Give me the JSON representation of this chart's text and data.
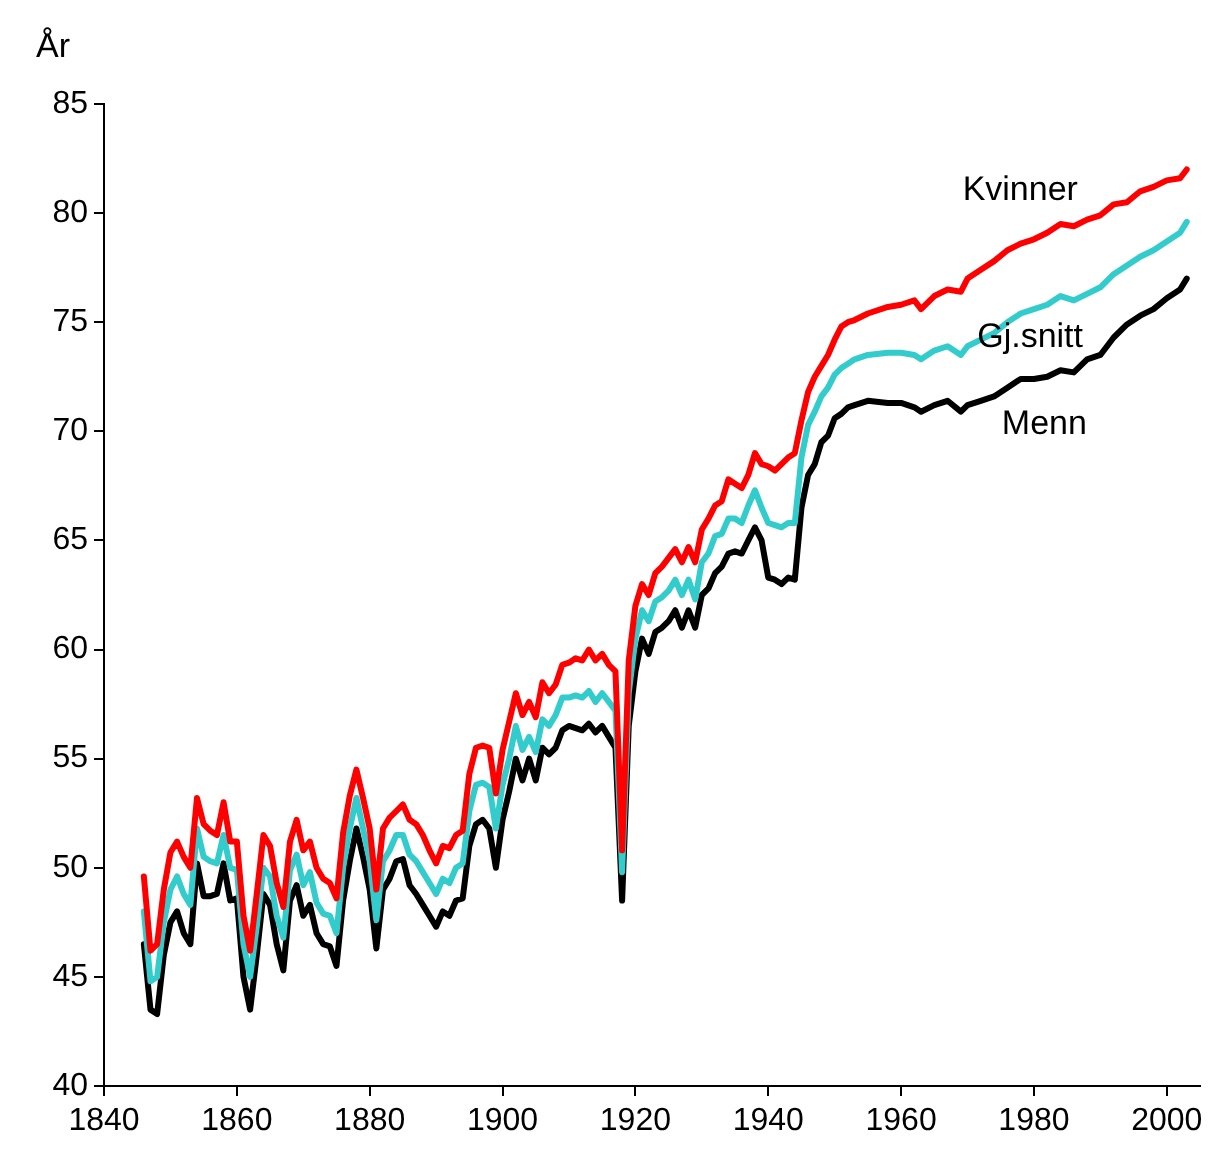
{
  "chart_data": {
    "type": "line",
    "ylabel": "År",
    "xlim": [
      1840,
      2005
    ],
    "xticks": [
      1840,
      1860,
      1880,
      1900,
      1920,
      1940,
      1960,
      1980,
      2000
    ],
    "ylim": [
      40,
      85
    ],
    "yticks": [
      40,
      45,
      50,
      55,
      60,
      65,
      70,
      75,
      80,
      85
    ],
    "grid": false,
    "legend": false,
    "marker": "none",
    "line_style": "solid",
    "x": [
      1846,
      1847,
      1848,
      1849,
      1850,
      1851,
      1852,
      1853,
      1854,
      1855,
      1856,
      1857,
      1858,
      1859,
      1860,
      1861,
      1862,
      1863,
      1864,
      1865,
      1866,
      1867,
      1868,
      1869,
      1870,
      1871,
      1872,
      1873,
      1874,
      1875,
      1876,
      1877,
      1878,
      1879,
      1880,
      1881,
      1882,
      1883,
      1884,
      1885,
      1886,
      1887,
      1888,
      1889,
      1890,
      1891,
      1892,
      1893,
      1894,
      1895,
      1896,
      1897,
      1898,
      1899,
      1900,
      1901,
      1902,
      1903,
      1904,
      1905,
      1906,
      1907,
      1908,
      1909,
      1910,
      1911,
      1912,
      1913,
      1914,
      1915,
      1916,
      1917,
      1918,
      1919,
      1920,
      1921,
      1922,
      1923,
      1924,
      1925,
      1926,
      1927,
      1928,
      1929,
      1930,
      1931,
      1932,
      1933,
      1934,
      1935,
      1936,
      1937,
      1938,
      1939,
      1940,
      1941,
      1942,
      1943,
      1944,
      1945,
      1946,
      1947,
      1948,
      1949,
      1950,
      1951,
      1952,
      1953,
      1955,
      1958,
      1960,
      1962,
      1963,
      1965,
      1967,
      1969,
      1970,
      1972,
      1974,
      1976,
      1978,
      1980,
      1982,
      1984,
      1986,
      1988,
      1990,
      1992,
      1994,
      1996,
      1998,
      2000,
      2002,
      2003
    ],
    "series": [
      {
        "name": "Kvinner",
        "color": "#ff0000",
        "values": [
          49.6,
          46.2,
          46.5,
          49,
          50.7,
          51.2,
          50.5,
          50,
          53.2,
          52,
          51.7,
          51.5,
          53,
          51.2,
          51.2,
          47.8,
          46.2,
          48.8,
          51.5,
          51,
          49.3,
          48.2,
          51.2,
          52.2,
          50.8,
          51.2,
          50,
          49.5,
          49.3,
          48.6,
          51.6,
          53.3,
          54.5,
          53.2,
          51.8,
          49,
          51.8,
          52.3,
          52.6,
          52.9,
          52.2,
          52,
          51.5,
          50.8,
          50.2,
          51,
          50.9,
          51.5,
          51.7,
          54.3,
          55.5,
          55.6,
          55.5,
          53.4,
          55.4,
          56.7,
          58,
          57,
          57.6,
          56.9,
          58.5,
          58,
          58.4,
          59.3,
          59.4,
          59.6,
          59.5,
          60,
          59.5,
          59.8,
          59.3,
          59,
          50.8,
          59.5,
          62,
          63,
          62.5,
          63.5,
          63.8,
          64.2,
          64.6,
          64,
          64.7,
          64,
          65.5,
          66,
          66.6,
          66.8,
          67.8,
          67.6,
          67.4,
          68,
          69,
          68.5,
          68.4,
          68.2,
          68.5,
          68.8,
          69,
          70.5,
          71.8,
          72.5,
          73,
          73.5,
          74.2,
          74.8,
          75,
          75.1,
          75.4,
          75.7,
          75.8,
          76,
          75.6,
          76.2,
          76.5,
          76.4,
          77,
          77.4,
          77.8,
          78.3,
          78.6,
          78.8,
          79.1,
          79.5,
          79.4,
          79.7,
          79.9,
          80.4,
          80.5,
          81,
          81.2,
          81.5,
          81.6,
          82
        ]
      },
      {
        "name": "Gj.snitt",
        "color": "#33cccc",
        "values": [
          48,
          44.8,
          45,
          47.5,
          49,
          49.6,
          48.8,
          48.3,
          51.8,
          50.5,
          50.3,
          50.2,
          51.5,
          50,
          49.9,
          46.5,
          45,
          47.3,
          50,
          49.6,
          47.8,
          46.8,
          49.9,
          50.6,
          49.2,
          49.8,
          48.4,
          47.9,
          47.8,
          47,
          50,
          51.8,
          53.2,
          51.8,
          50.3,
          47.6,
          50.3,
          50.8,
          51.5,
          51.5,
          50.6,
          50.3,
          49.8,
          49.3,
          48.8,
          49.5,
          49.3,
          50,
          50.2,
          52.6,
          53.8,
          53.9,
          53.7,
          51.8,
          53.8,
          55,
          56.5,
          55.4,
          56,
          55.3,
          56.8,
          56.5,
          57,
          57.8,
          57.8,
          57.9,
          57.8,
          58.1,
          57.6,
          58,
          57.6,
          57.2,
          49.8,
          58,
          60.5,
          61.8,
          61.3,
          62.2,
          62.4,
          62.7,
          63.2,
          62.5,
          63.2,
          62.3,
          64,
          64.4,
          65.2,
          65.3,
          66,
          66,
          65.8,
          66.6,
          67.3,
          66.5,
          65.8,
          65.7,
          65.6,
          65.8,
          65.8,
          68.8,
          70.3,
          70.9,
          71.6,
          72,
          72.6,
          72.9,
          73.1,
          73.3,
          73.5,
          73.6,
          73.6,
          73.5,
          73.3,
          73.7,
          73.9,
          73.5,
          73.9,
          74.2,
          74.5,
          75,
          75.4,
          75.6,
          75.8,
          76.2,
          76,
          76.3,
          76.6,
          77.2,
          77.6,
          78,
          78.3,
          78.7,
          79.1,
          79.6
        ]
      },
      {
        "name": "Menn",
        "color": "#000000",
        "values": [
          46.5,
          43.5,
          43.3,
          46,
          47.5,
          48,
          47,
          46.5,
          50.2,
          48.7,
          48.7,
          48.8,
          50.2,
          48.5,
          48.6,
          45,
          43.5,
          46,
          48.8,
          48.3,
          46.5,
          45.3,
          48.5,
          49.2,
          47.8,
          48.3,
          47,
          46.5,
          46.4,
          45.5,
          48.5,
          50.3,
          51.8,
          50.5,
          49,
          46.3,
          49,
          49.5,
          50.3,
          50.4,
          49.2,
          48.8,
          48.3,
          47.8,
          47.3,
          48,
          47.8,
          48.5,
          48.6,
          51,
          52,
          52.2,
          51.8,
          50,
          52.2,
          53.5,
          55,
          54,
          55,
          54,
          55.5,
          55.2,
          55.5,
          56.3,
          56.5,
          56.4,
          56.3,
          56.6,
          56.2,
          56.5,
          56,
          55.5,
          48.5,
          56.5,
          59,
          60.5,
          59.8,
          60.8,
          61,
          61.3,
          61.8,
          61,
          61.8,
          61,
          62.5,
          62.8,
          63.5,
          63.8,
          64.4,
          64.5,
          64.4,
          65,
          65.6,
          65,
          63.3,
          63.2,
          63,
          63.3,
          63.2,
          66.5,
          68,
          68.5,
          69.5,
          69.8,
          70.6,
          70.8,
          71.1,
          71.2,
          71.4,
          71.3,
          71.3,
          71.1,
          70.9,
          71.2,
          71.4,
          70.9,
          71.2,
          71.4,
          71.6,
          72,
          72.4,
          72.4,
          72.5,
          72.8,
          72.7,
          73.3,
          73.5,
          74.3,
          74.9,
          75.3,
          75.6,
          76.1,
          76.5,
          77
        ]
      }
    ]
  }
}
